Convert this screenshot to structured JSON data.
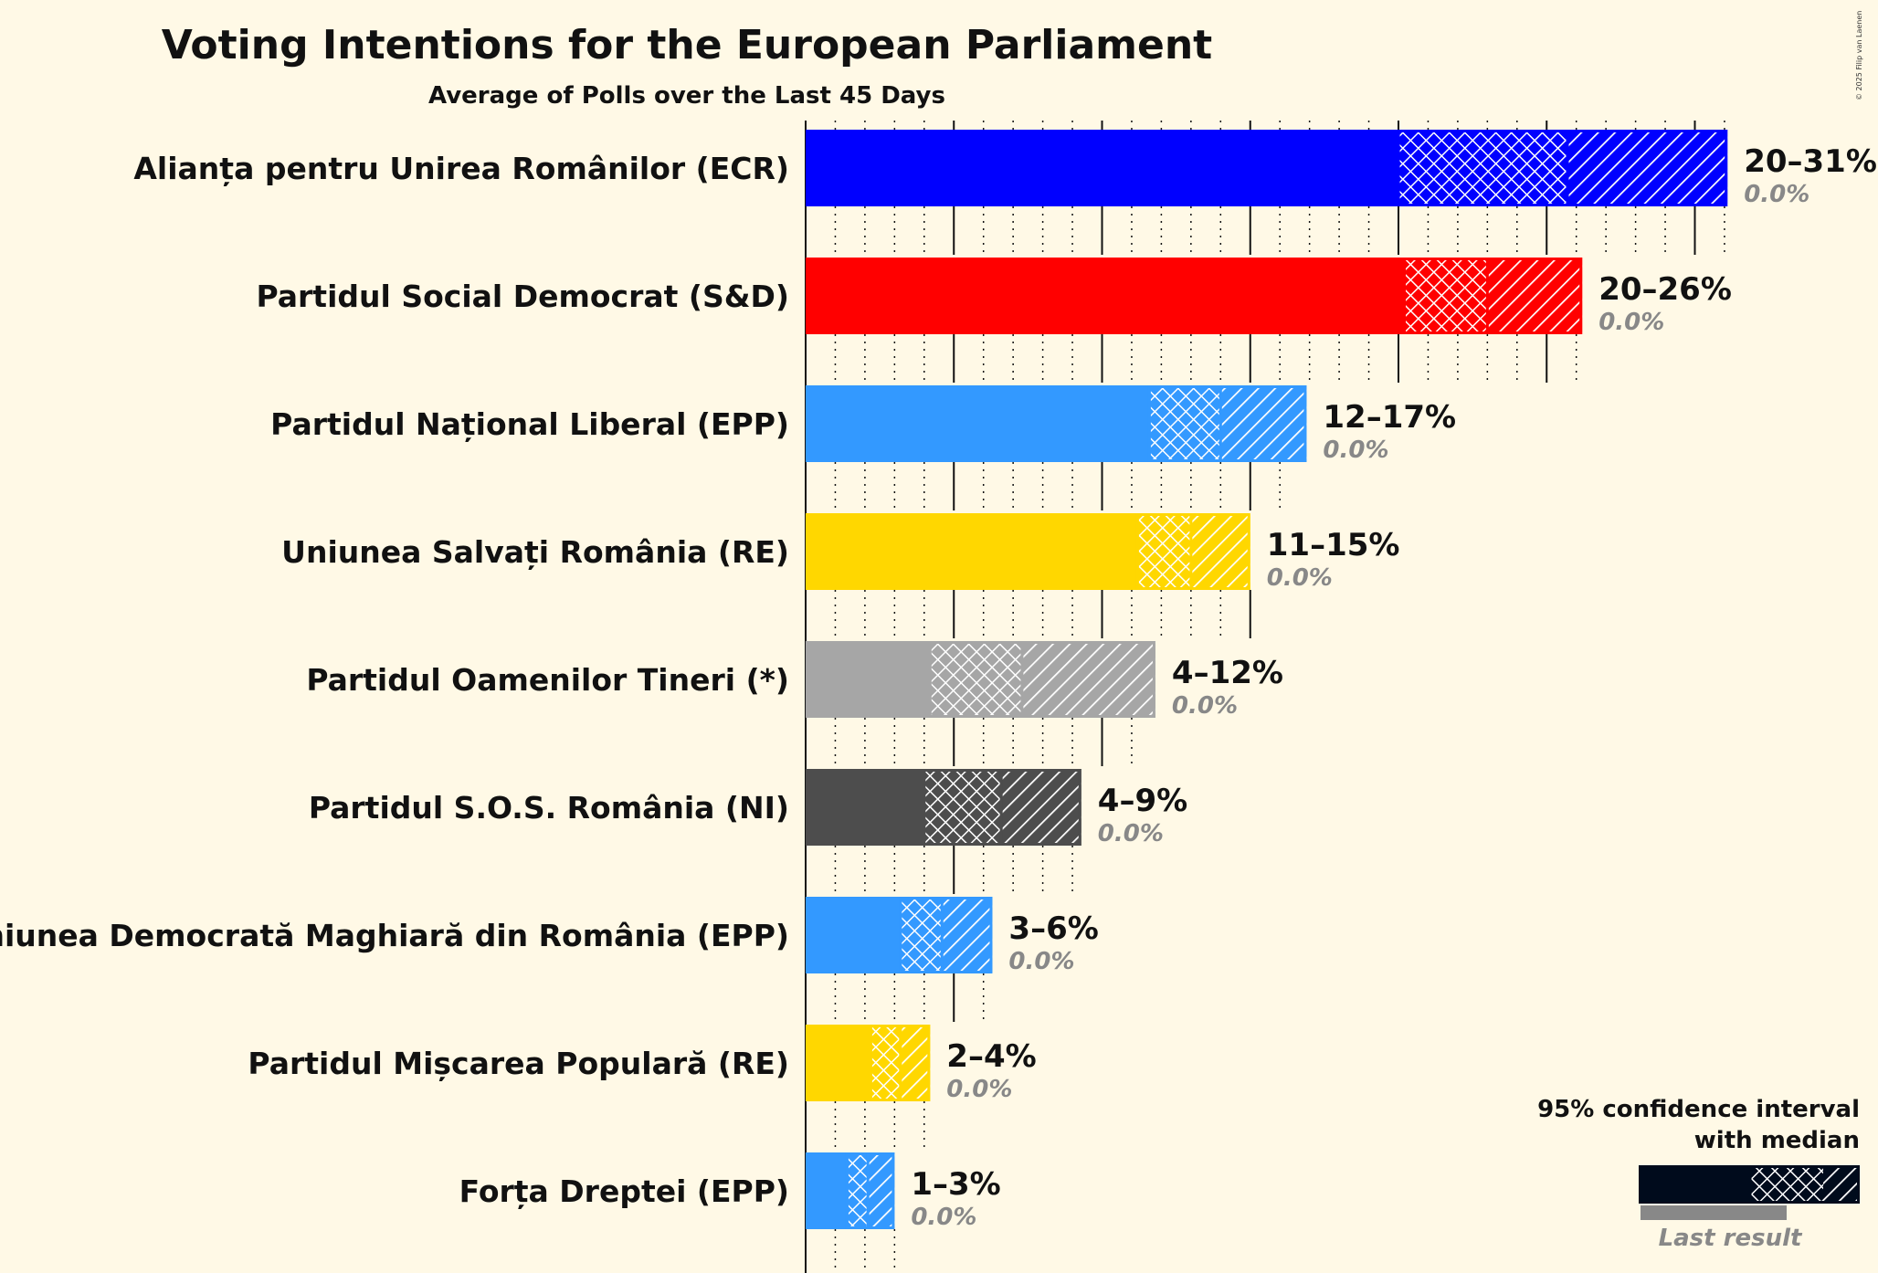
{
  "copyright": "© 2025 Filip van Laenen",
  "chart_data": {
    "type": "bar",
    "orientation": "horizontal",
    "title": "Voting Intentions for the European Parliament",
    "subtitle": "Average of Polls over the Last 45 Days",
    "xlim": [
      0,
      31
    ],
    "grid": "dotted every 1%, solid every 5%",
    "categories": [
      "Alianța pentru Unirea Românilor (ECR)",
      "Partidul Social Democrat (S&D)",
      "Partidul Național Liberal (EPP)",
      "Uniunea Salvați România (RE)",
      "Partidul Oamenilor Tineri (*)",
      "Partidul S.O.S. România (NI)",
      "Uniunea Democrată Maghiară din România (EPP)",
      "Partidul Mișcarea Populară (RE)",
      "Forța Dreptei (EPP)"
    ],
    "series": [
      {
        "ci95_low": [
          20.0,
          20.2,
          11.6,
          11.2,
          4.2,
          4.0,
          3.2,
          2.2,
          1.4
        ],
        "median": [
          25.7,
          23.0,
          14.0,
          13.0,
          7.3,
          6.6,
          4.6,
          3.2,
          2.1
        ],
        "ci95_high": [
          31.1,
          26.2,
          16.9,
          15.0,
          11.8,
          9.3,
          6.3,
          4.2,
          3.0
        ],
        "colors": [
          "#0000ff",
          "#ff0000",
          "#3399ff",
          "#ffd700",
          "#a6a6a6",
          "#4d4d4d",
          "#3399ff",
          "#ffd700",
          "#3399ff"
        ],
        "range_labels": [
          "20–31%",
          "20–26%",
          "12–17%",
          "11–15%",
          "4–12%",
          "4–9%",
          "3–6%",
          "2–4%",
          "1–3%"
        ],
        "last_result_labels": [
          "0.0%",
          "0.0%",
          "0.0%",
          "0.0%",
          "0.0%",
          "0.0%",
          "0.0%",
          "0.0%",
          "0.0%"
        ],
        "last_result": [
          0,
          0,
          0,
          0,
          0,
          0,
          0,
          0,
          0
        ]
      }
    ],
    "legend": {
      "position": "bottom-right",
      "title_line1": "95% confidence interval",
      "title_line2": "with median",
      "last_result": "Last result",
      "color": "#000b1c"
    }
  }
}
